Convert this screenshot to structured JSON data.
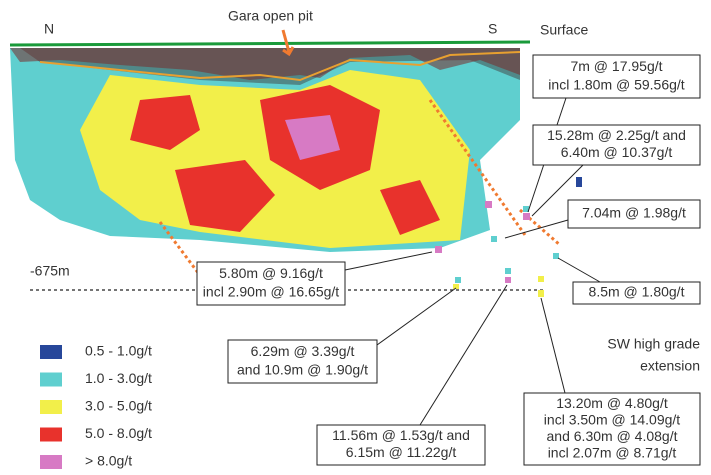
{
  "labels": {
    "north": "N",
    "south": "S",
    "surface": "Surface",
    "pit": "Gara open pit",
    "depth": "-675m",
    "zone": [
      "SW high grade",
      "extension"
    ]
  },
  "callouts": [
    {
      "lines": [
        "7m @ 17.95g/t",
        "incl 1.80m @ 59.56g/t"
      ]
    },
    {
      "lines": [
        "15.28m @ 2.25g/t and",
        "6.40m @ 10.37g/t"
      ]
    },
    {
      "lines": [
        "7.04m @ 1.98g/t"
      ]
    },
    {
      "lines": [
        "5.80m @ 9.16g/t",
        "incl 2.90m @ 16.65g/t"
      ]
    },
    {
      "lines": [
        "8.5m @ 1.80g/t"
      ]
    },
    {
      "lines": [
        "6.29m @ 3.39g/t",
        "and 10.9m @ 1.90g/t"
      ]
    },
    {
      "lines": [
        "11.56m @ 1.53g/t and",
        "6.15m @ 11.22g/t"
      ]
    },
    {
      "lines": [
        "13.20m @ 4.80g/t",
        "incl 3.50m @ 14.09g/t",
        "and 6.30m @ 4.08g/t",
        "incl 2.07m @ 8.71g/t"
      ]
    }
  ],
  "legend": [
    {
      "label": "0.5 - 1.0g/t",
      "color": "#27479a"
    },
    {
      "label": "1.0 - 3.0g/t",
      "color": "#5fcfcf"
    },
    {
      "label": "3.0 - 5.0g/t",
      "color": "#f2ef4a"
    },
    {
      "label": "5.0 - 8.0g/t",
      "color": "#e8322c"
    },
    {
      "label": "> 8.0g/t",
      "color": "#d77ac4"
    }
  ]
}
